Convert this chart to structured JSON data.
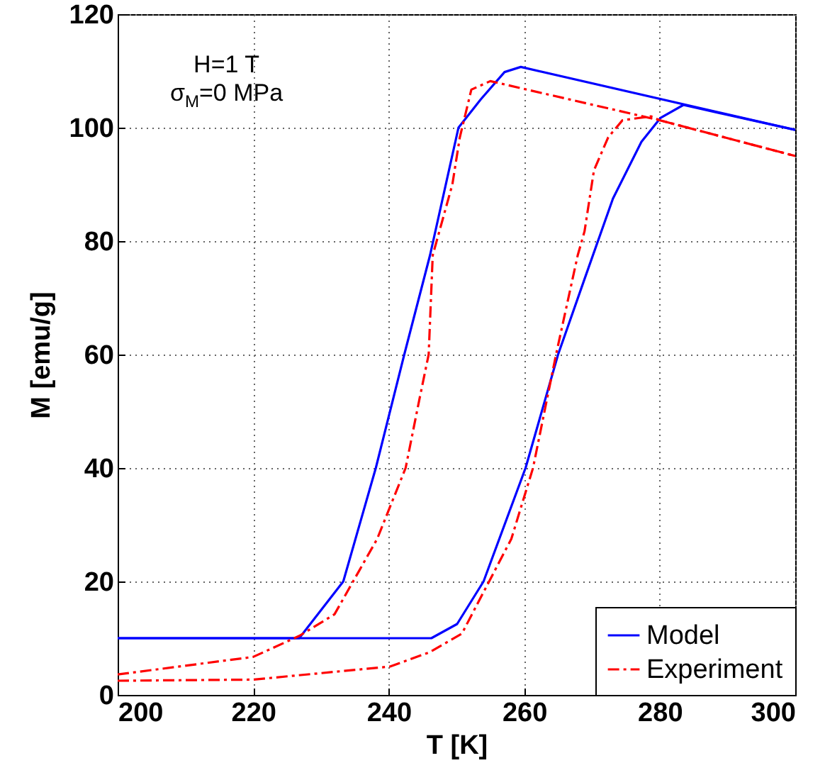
{
  "chart_data": {
    "type": "line",
    "xlabel": "T [K]",
    "ylabel": "M [emu/g]",
    "annotations": [
      "H=1 T",
      "σ$_{M}$=0 MPa"
    ],
    "xlim": [
      200,
      300
    ],
    "xticks": [
      200,
      220,
      240,
      260,
      280,
      300
    ],
    "ylim": [
      0,
      120
    ],
    "yticks": [
      0,
      20,
      40,
      60,
      80,
      100,
      120
    ],
    "grid": true,
    "legend": "bottom right",
    "series": [
      {
        "name": "Model",
        "color": "#0000ff",
        "line_style": "solid",
        "x": [
          200,
          246.3,
          250.1,
          254.0,
          260.2,
          265.0,
          268.9,
          273.1,
          277.3,
          280.1,
          283.5,
          300
        ],
        "values": [
          10,
          10,
          12.5,
          20,
          40,
          60,
          73.3,
          87.5,
          97.5,
          101.7,
          104,
          99.6
        ]
      },
      {
        "name": "Experiment",
        "color": "#ff0000",
        "line_style": "dashed",
        "x": [
          200,
          220,
          240.2,
          246.0,
          250.8,
          258.1,
          261.3,
          264.7,
          267.9,
          268.9,
          270.3,
          272.4,
          274.5,
          278.7,
          280,
          300
        ],
        "values": [
          2.5,
          2.7,
          5,
          7.5,
          10.8,
          27.5,
          40,
          60,
          77.5,
          81.7,
          92.5,
          98.3,
          101.3,
          102,
          101.3,
          95
        ]
      },
      {
        "color": "#0000ff",
        "line_style": "solid",
        "x": [
          200,
          226.8,
          233.3,
          238.1,
          242.3,
          246.1,
          250.3,
          253.6,
          257.1,
          259.5,
          300
        ],
        "values": [
          10,
          10,
          20,
          40,
          60,
          77.5,
          100,
          105,
          109.8,
          110.7,
          99.6
        ]
      },
      {
        "color": "#ff0000",
        "line_style": "dashed",
        "x": [
          200,
          220,
          226.8,
          232.0,
          238.3,
          242.5,
          244.6,
          245.9,
          246.5,
          249.4,
          250.5,
          252.2,
          255.0,
          280,
          300
        ],
        "values": [
          3.6,
          6.7,
          10.4,
          14.2,
          27.5,
          40,
          52.5,
          60,
          77.5,
          90,
          98.3,
          106.7,
          108.2,
          101.3,
          95
        ]
      }
    ]
  }
}
